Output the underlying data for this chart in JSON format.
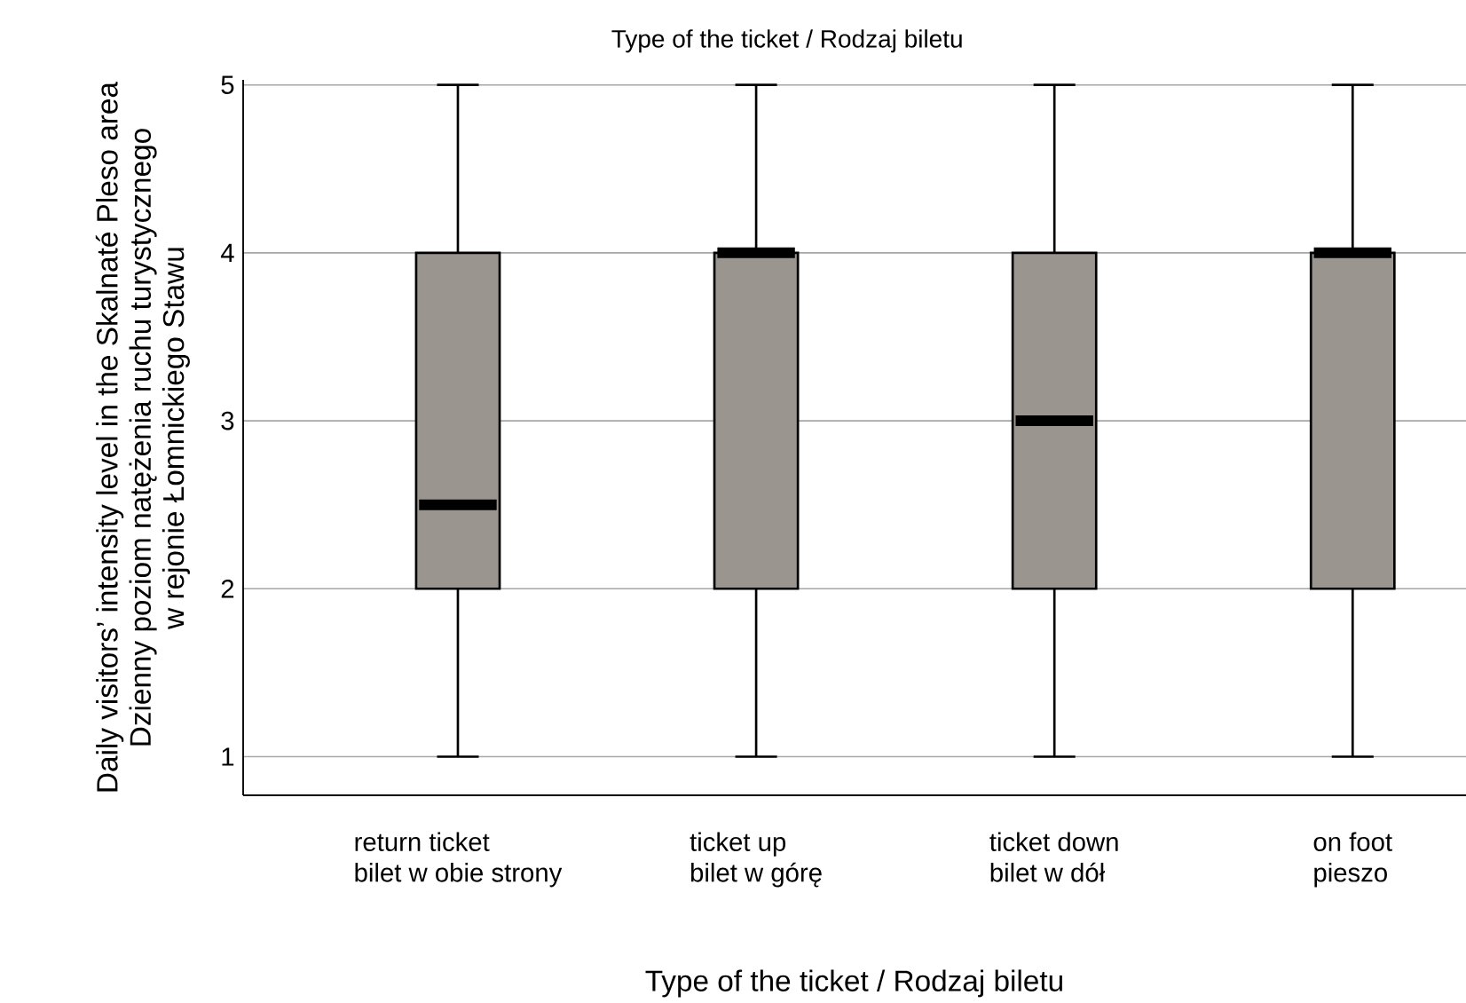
{
  "chart_data": {
    "type": "box",
    "title": "Type of the ticket / Rodzaj biletu",
    "xlabel": "Type of the ticket / Rodzaj biletu",
    "ylabel": "Daily visitors’ intensity level in the Skalnaté Pleso area\nDzienny poziom natężenia ruchu turystycznego\nw rejonie Łomnickiego Stawu",
    "categories": [
      "return ticket\nbilet w obie strony",
      "ticket up\nbilet w górę",
      "ticket down\nbilet w dół",
      "on foot\npieszo"
    ],
    "boxes": [
      {
        "low": 1,
        "q1": 2,
        "median": 2.5,
        "q3": 4,
        "high": 5
      },
      {
        "low": 1,
        "q1": 2,
        "median": 4,
        "q3": 4,
        "high": 5
      },
      {
        "low": 1,
        "q1": 2,
        "median": 3,
        "q3": 4,
        "high": 5
      },
      {
        "low": 1,
        "q1": 2,
        "median": 4,
        "q3": 4,
        "high": 5
      }
    ],
    "color": "#9b9590",
    "ylim": [
      0.77,
      5.03
    ],
    "yticks": [
      1,
      2,
      3,
      4,
      5
    ],
    "grid": "y"
  }
}
